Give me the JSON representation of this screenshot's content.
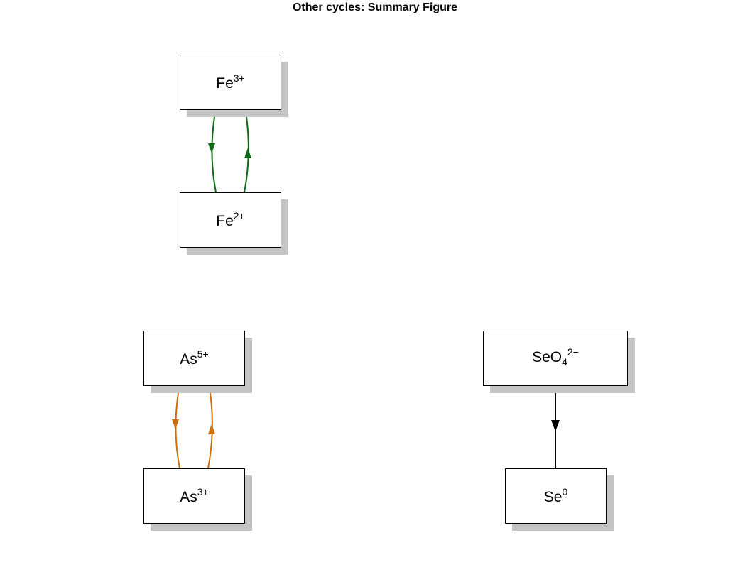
{
  "title": "Other cycles: Summary Figure",
  "colors": {
    "iron": "#0b6b14",
    "arsenic": "#cc6f0b",
    "selenium": "#000000",
    "shadow": "#c4c4c4"
  },
  "nodes": {
    "fe3": {
      "base": "Fe",
      "sup": "3+"
    },
    "fe2": {
      "base": "Fe",
      "sup": "2+"
    },
    "as5": {
      "base": "As",
      "sup": "5+"
    },
    "as3": {
      "base": "As",
      "sup": "3+"
    },
    "seo4": {
      "base": "SeO",
      "sub": "4",
      "sup": "2−"
    },
    "se0": {
      "base": "Se",
      "sup": "0"
    }
  },
  "edges": [
    {
      "from": "fe3",
      "to": "fe2",
      "color": "iron"
    },
    {
      "from": "fe2",
      "to": "fe3",
      "color": "iron"
    },
    {
      "from": "as5",
      "to": "as3",
      "color": "arsenic"
    },
    {
      "from": "as3",
      "to": "as5",
      "color": "arsenic"
    },
    {
      "from": "seo4",
      "to": "se0",
      "color": "selenium"
    }
  ]
}
